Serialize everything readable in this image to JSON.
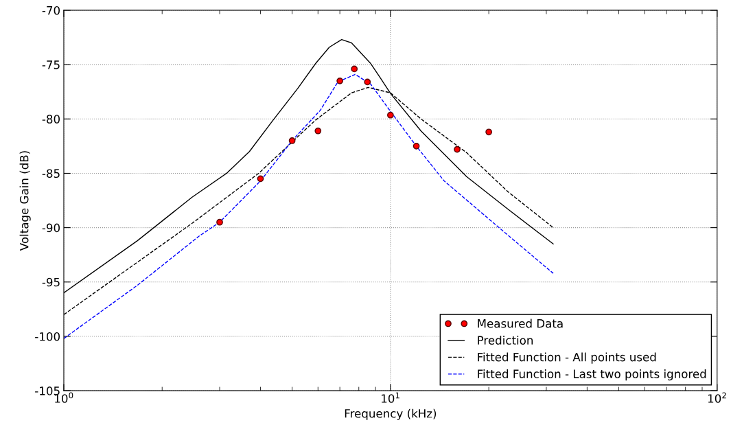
{
  "chart_data": {
    "type": "line",
    "xlabel": "Frequency (kHz)",
    "ylabel": "Voltage Gain (dB)",
    "log": "x",
    "xlim": [
      1,
      100
    ],
    "xticks": [
      {
        "value": 1,
        "label": "10$^{0}$"
      },
      {
        "value": 10,
        "label": "10$^{1}$"
      },
      {
        "value": 100,
        "label": "10$^{2}$"
      }
    ],
    "ylim": [
      -105,
      -70
    ],
    "yticks": [
      -105,
      -100,
      -95,
      -90,
      -85,
      -80,
      -75,
      -70
    ],
    "grid": true,
    "legend": "bottom right",
    "series": [
      {
        "name": "Measured Data",
        "type": "scatter",
        "marker": "circle",
        "color": "#ff0000",
        "x": [
          3,
          4,
          5,
          6,
          7,
          7.75,
          8.5,
          10,
          12,
          16,
          20
        ],
        "values": [
          -89.5,
          -85.5,
          -82.0,
          -81.1,
          -76.5,
          -75.4,
          -76.6,
          -79.65,
          -82.5,
          -82.8,
          -81.2
        ]
      },
      {
        "name": "Prediction",
        "line_style": "solid",
        "color": "#000000",
        "x": [
          1,
          1.68,
          2.47,
          3.15,
          3.7,
          4.35,
          5.2,
          5.9,
          6.5,
          7.09,
          7.6,
          8.7,
          9.3,
          10.03,
          12.4,
          17.1,
          22.9,
          31.5
        ],
        "values": [
          -96.0,
          -91.2,
          -87.2,
          -85.0,
          -83.0,
          -80.2,
          -77.2,
          -74.9,
          -73.4,
          -72.7,
          -73.0,
          -74.9,
          -76.2,
          -77.7,
          -81.1,
          -85.3,
          -88.3,
          -91.5
        ]
      },
      {
        "name": "Fitted Function - All points used",
        "line_style": "dashed",
        "color": "#000000",
        "x": [
          1,
          2.47,
          3.95,
          5.9,
          7.6,
          8.55,
          10.0,
          12.4,
          17.1,
          22.9,
          31.5
        ],
        "values": [
          -98.0,
          -89.6,
          -85.0,
          -80.1,
          -77.6,
          -77.1,
          -77.6,
          -80.0,
          -83.1,
          -86.7,
          -90.0
        ]
      },
      {
        "name": "Fitted Function - Last two points ignored",
        "line_style": "dashed",
        "color": "#0000ff",
        "x": [
          1,
          1.68,
          2.59,
          3.0,
          4.0,
          5.03,
          6.1,
          6.9,
          7.8,
          8.7,
          10,
          12,
          14.6,
          22.9,
          31.5
        ],
        "values": [
          -100.2,
          -95.3,
          -90.8,
          -89.5,
          -85.7,
          -81.9,
          -79.2,
          -76.6,
          -75.9,
          -76.8,
          -79.3,
          -82.5,
          -85.7,
          -90.7,
          -94.2
        ]
      }
    ]
  }
}
